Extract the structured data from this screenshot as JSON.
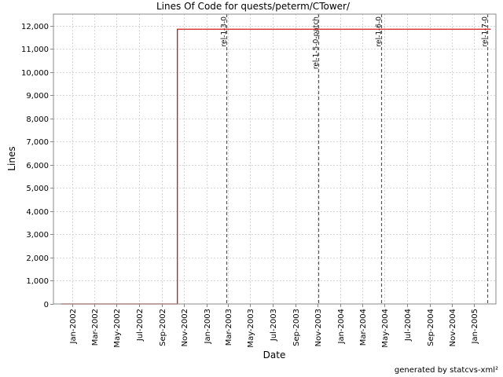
{
  "chart_data": {
    "type": "line",
    "title": "Lines Of Code for quests/peterm/CTower/",
    "xlabel": "Date",
    "ylabel": "Lines",
    "ylim": [
      0,
      12500
    ],
    "yticks": [
      0,
      1000,
      2000,
      3000,
      4000,
      5000,
      6000,
      7000,
      8000,
      9000,
      10000,
      11000,
      12000
    ],
    "ytick_labels": [
      "0",
      "1,000",
      "2,000",
      "3,000",
      "4,000",
      "5,000",
      "6,000",
      "7,000",
      "8,000",
      "9,000",
      "10,000",
      "11,000",
      "12,000"
    ],
    "xlim": [
      "2001-11-10",
      "2005-03-01"
    ],
    "xticks": [
      "2002-01-01",
      "2002-03-01",
      "2002-05-01",
      "2002-07-01",
      "2002-09-01",
      "2002-11-01",
      "2003-01-01",
      "2003-03-01",
      "2003-05-01",
      "2003-07-01",
      "2003-09-01",
      "2003-11-01",
      "2004-01-01",
      "2004-03-01",
      "2004-05-01",
      "2004-07-01",
      "2004-09-01",
      "2004-11-01",
      "2005-01-01"
    ],
    "xtick_labels": [
      "Jan-2002",
      "Mar-2002",
      "May-2002",
      "Jul-2002",
      "Sep-2002",
      "Nov-2002",
      "Jan-2003",
      "Mar-2003",
      "May-2003",
      "Jul-2003",
      "Sep-2003",
      "Nov-2003",
      "Jan-2004",
      "Mar-2004",
      "May-2004",
      "Jul-2004",
      "Sep-2004",
      "Nov-2004",
      "Jan-2005"
    ],
    "grid": true,
    "series": [
      {
        "color": "#cc0000",
        "step": true,
        "points": [
          {
            "x": "2001-12-01",
            "y": 0
          },
          {
            "x": "2002-10-14",
            "y": 0
          },
          {
            "x": "2002-10-14",
            "y": 11850
          },
          {
            "x": "2005-02-15",
            "y": 11850
          }
        ]
      }
    ],
    "markers": [
      {
        "label": "rel-1-3-0",
        "x": "2003-02-25"
      },
      {
        "label": "rel-1-5-0-patch",
        "x": "2003-11-02"
      },
      {
        "label": "rel-1-6-0",
        "x": "2004-04-22"
      },
      {
        "label": "rel-1-7-0",
        "x": "2005-02-05"
      }
    ],
    "colors": {
      "line": "#cc0000",
      "grid": "#d8d8d8",
      "marker": "#555555"
    }
  },
  "footer": {
    "credit": "generated by statcvs-xml²"
  }
}
